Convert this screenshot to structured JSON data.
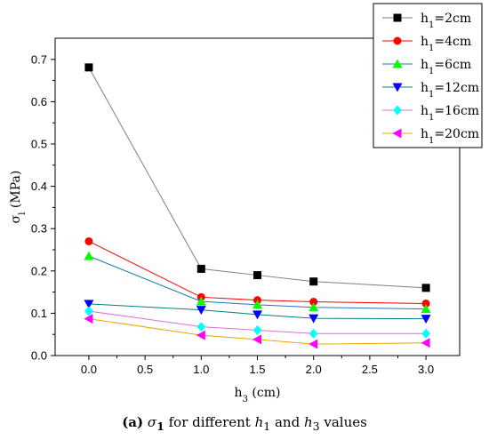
{
  "chart_data": {
    "type": "line",
    "x": [
      0.0,
      1.0,
      1.5,
      2.0,
      3.0
    ],
    "xlabel_main": "h",
    "xlabel_sub": "3",
    "xlabel_unit": " (cm)",
    "ylabel_main": "σ",
    "ylabel_sub": "l",
    "ylabel_unit": " (MPa)",
    "xlim": [
      -0.3,
      3.3
    ],
    "ylim": [
      0.0,
      0.75
    ],
    "xticks": [
      "0.0",
      "0.5",
      "1.0",
      "1.5",
      "2.0",
      "2.5",
      "3.0"
    ],
    "yticks": [
      "0.0",
      "0.1",
      "0.2",
      "0.3",
      "0.4",
      "0.5",
      "0.6",
      "0.7"
    ],
    "grid": false,
    "legend_position": "top-right",
    "series": [
      {
        "name_main": "h",
        "name_sub": "1",
        "name_rest": "=2cm",
        "color": "#000000",
        "line_color": "#808080",
        "marker": "square",
        "values": [
          0.681,
          0.205,
          0.19,
          0.175,
          0.16
        ]
      },
      {
        "name_main": "h",
        "name_sub": "1",
        "name_rest": "=4cm",
        "color": "#ff0000",
        "line_color": "#ff0000",
        "marker": "circle",
        "values": [
          0.27,
          0.138,
          0.131,
          0.127,
          0.123
        ]
      },
      {
        "name_main": "h",
        "name_sub": "1",
        "name_rest": "=6cm",
        "color": "#00ff00",
        "line_color": "#1f77b4",
        "marker": "triangle-up",
        "values": [
          0.235,
          0.128,
          0.12,
          0.114,
          0.11
        ]
      },
      {
        "name_main": "h",
        "name_sub": "1",
        "name_rest": "=12cm",
        "color": "#0000ff",
        "line_color": "#008080",
        "marker": "triangle-down",
        "values": [
          0.122,
          0.108,
          0.097,
          0.088,
          0.087
        ]
      },
      {
        "name_main": "h",
        "name_sub": "1",
        "name_rest": "=16cm",
        "color": "#00ffff",
        "line_color": "#da70d6",
        "marker": "diamond",
        "values": [
          0.105,
          0.068,
          0.06,
          0.052,
          0.052
        ]
      },
      {
        "name_main": "h",
        "name_sub": "1",
        "name_rest": "=20cm",
        "color": "#ff00ff",
        "line_color": "#e6a800",
        "marker": "triangle-left",
        "values": [
          0.087,
          0.048,
          0.038,
          0.027,
          0.03
        ]
      }
    ]
  },
  "caption": {
    "panel": "(a)",
    "sigma": "σ",
    "sigma_sub": "1",
    "text1": "for different ",
    "h1": "h",
    "h1_sub": "1",
    "and": " and ",
    "h3": "h",
    "h3_sub": "3",
    "text2": " values"
  }
}
